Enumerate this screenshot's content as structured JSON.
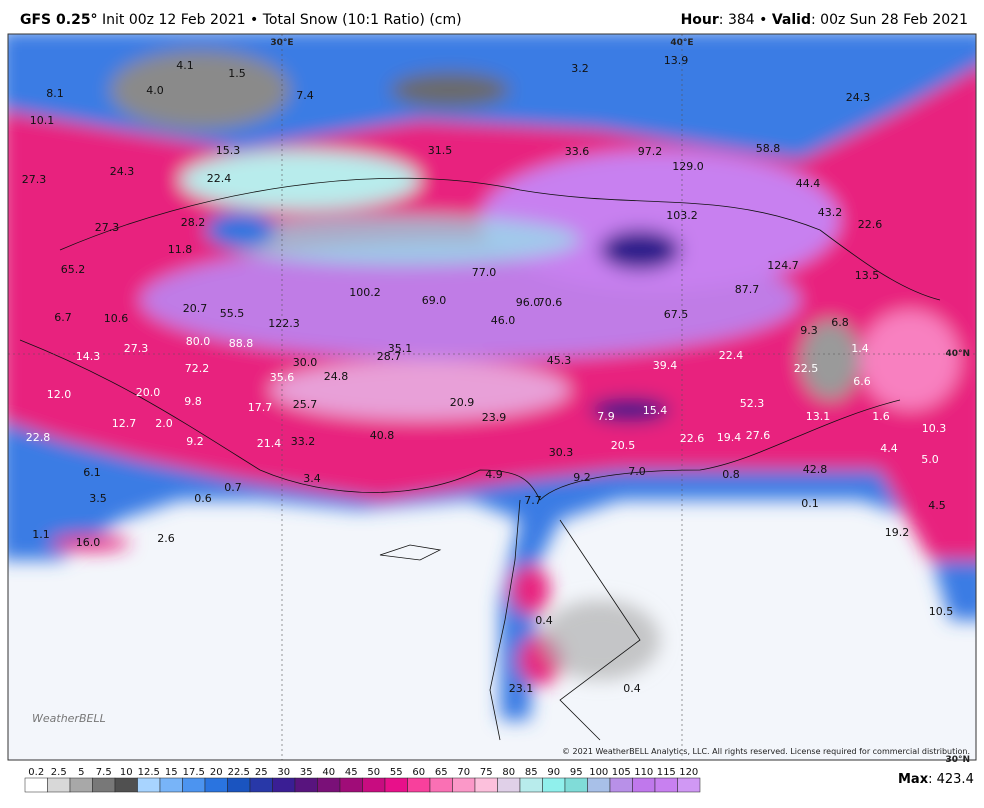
{
  "header": {
    "model": "GFS 0.25°",
    "run": "Init 00z 12 Feb 2021 • Total Snow (10:1 Ratio) (cm)",
    "hour_label": "Hour",
    "hour_value": ": 384 •",
    "valid_label": "Valid",
    "valid_value": ": 00z Sun 28 Feb 2021"
  },
  "grid_labels": [
    "30°E",
    "40°E",
    "40°N",
    "30°N"
  ],
  "map_labels": [
    "8.1",
    "4.1",
    "1.5",
    "4.0",
    "7.4",
    "3.2",
    "13.9",
    "24.3",
    "10.1",
    "15.3",
    "31.5",
    "33.6",
    "97.2",
    "58.8",
    "129.0",
    "27.3",
    "24.3",
    "22.4",
    "44.4",
    "103.2",
    "43.2",
    "22.6",
    "27.3",
    "28.2",
    "11.8",
    "65.2",
    "124.7",
    "77.0",
    "13.5",
    "100.2",
    "69.0",
    "96.0",
    "70.6",
    "87.7",
    "20.7",
    "55.5",
    "6.7",
    "10.6",
    "122.3",
    "46.0",
    "67.5",
    "9.3",
    "6.8",
    "27.3",
    "80.0",
    "88.8",
    "35.1",
    "14.3",
    "72.2",
    "30.0",
    "28.7",
    "45.3",
    "39.4",
    "22.4",
    "1.4",
    "22.5",
    "6.6",
    "35.6",
    "24.8",
    "12.0",
    "20.0",
    "9.8",
    "17.7",
    "25.7",
    "20.9",
    "52.3",
    "7.9",
    "15.4",
    "13.1",
    "1.6",
    "23.9",
    "12.7",
    "2.0",
    "10.3",
    "22.8",
    "9.2",
    "21.4",
    "33.2",
    "40.8",
    "22.6",
    "19.4",
    "27.6",
    "20.5",
    "30.3",
    "4.4",
    "5.0",
    "7.0",
    "0.8",
    "42.8",
    "9.2",
    "4.9",
    "3.4",
    "0.7",
    "6.1",
    "7.7",
    "0.1",
    "4.5",
    "3.5",
    "0.6",
    "19.2",
    "1.1",
    "16.0",
    "2.6",
    "10.5",
    "0.4",
    "23.1",
    "0.4"
  ],
  "copyright": "© 2021 WeatherBELL Analytics, LLC. All rights reserved. License required for commercial distribution.",
  "logo": "WeatherBELL",
  "colorbar": {
    "labels": [
      "0.2",
      "2.5",
      "5",
      "7.5",
      "10",
      "12.5",
      "15",
      "17.5",
      "20",
      "22.5",
      "25",
      "30",
      "35",
      "40",
      "45",
      "50",
      "55",
      "60",
      "65",
      "70",
      "75",
      "80",
      "85",
      "90",
      "95",
      "100",
      "105",
      "110",
      "115",
      "120"
    ],
    "colors": [
      "#ffffff",
      "#d8d8d8",
      "#a8a8a8",
      "#787878",
      "#505050",
      "#a8d4ff",
      "#78b4f8",
      "#4c94f0",
      "#2a74e0",
      "#1a54c0",
      "#2838a8",
      "#3a1e94",
      "#58147e",
      "#7a1078",
      "#a00c78",
      "#c80c80",
      "#e8108a",
      "#f8409c",
      "#fa70b4",
      "#fb98c8",
      "#fcc0dc",
      "#e0d0e8",
      "#b8ecec",
      "#90f0ec",
      "#80dcd8",
      "#a8c0e8",
      "#b890e8",
      "#c078ec",
      "#c880f0",
      "#d098f4"
    ]
  },
  "max_label": "Max",
  "max_value": ": 423.4"
}
